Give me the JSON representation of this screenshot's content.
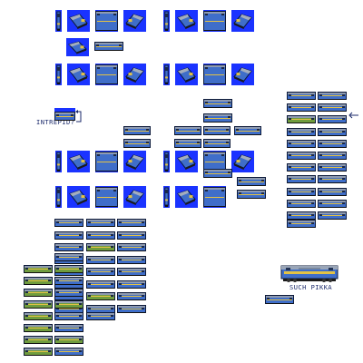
{
  "annotations": {
    "intrepid_label": "INTREPID?",
    "such_pikka_label": "SUCH PIKKA"
  },
  "icons": {
    "arrow_left": "arrow-left-icon",
    "arrow_bracket": "arrow-bracket-icon"
  },
  "palette": {
    "sheet_background": "#ffffff",
    "tile_background": "#1a33ff",
    "loco_body_blue": "#3f6ec9",
    "loco_body_dark": "#1f3c7a",
    "loco_stripe_yellow": "#e3c245",
    "loco_green_body": "#6f9c3e",
    "outline": "#0d1a3a",
    "text_navy": "#1b2a6b"
  },
  "sprite_groups": {
    "rotation_sets": "locomotive rotation views on blue tiles",
    "side_view_grid": "locomotive side view sprites",
    "green_livery_column": "green livery side view sprites",
    "right_column_list": "side view sprite list with pointer",
    "hero_sprite": "large locomotive sprite"
  }
}
